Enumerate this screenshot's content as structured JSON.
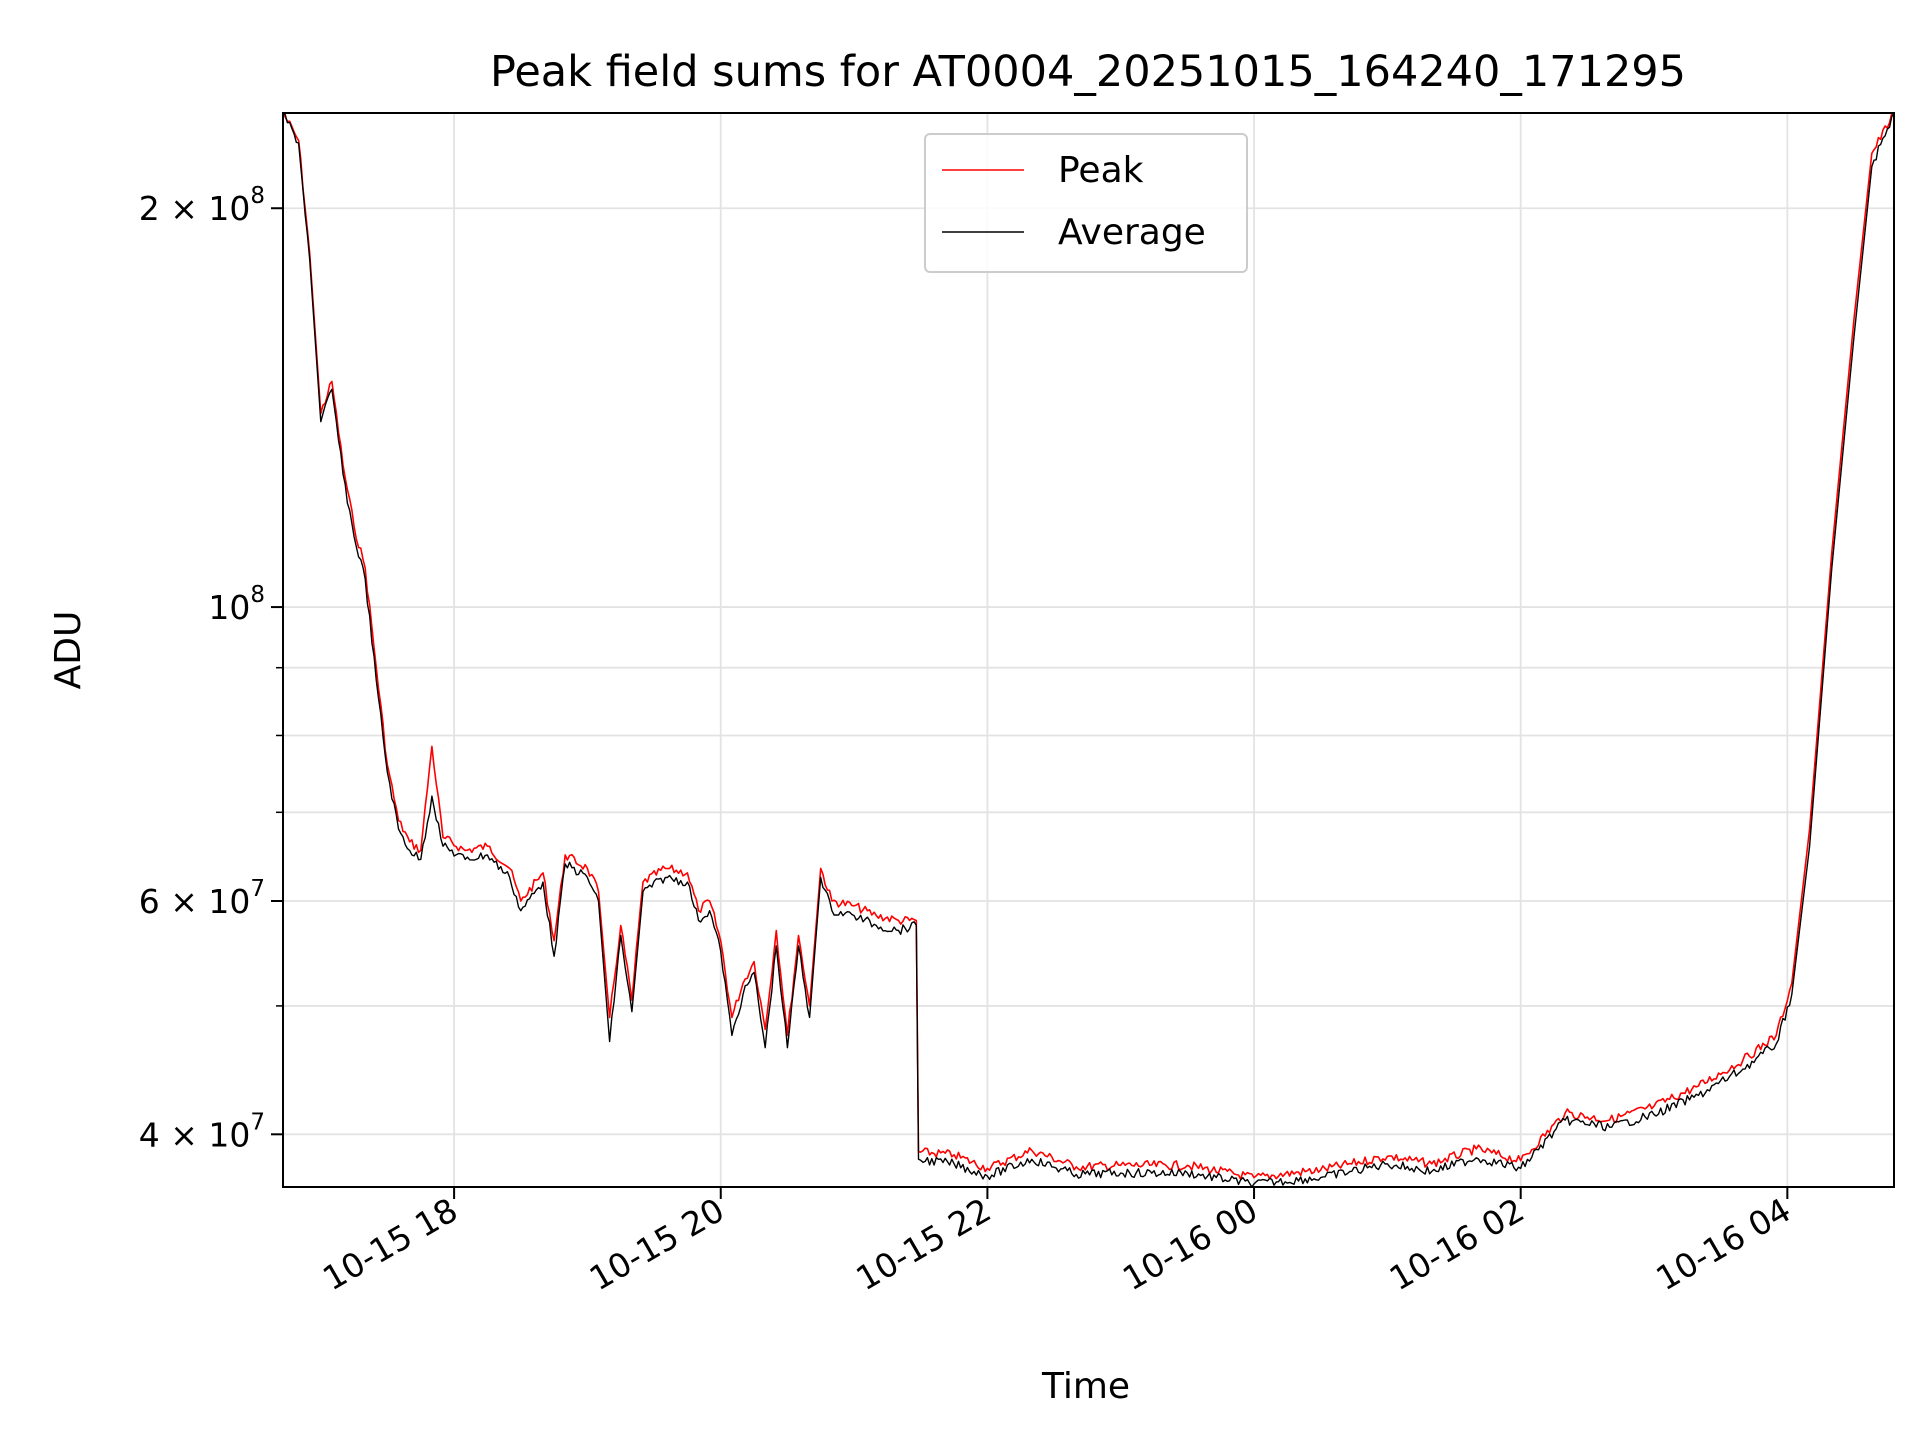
{
  "chart_data": {
    "type": "line",
    "title": "Peak field sums for AT0004_20251015_164240_171295",
    "xlabel": "Time",
    "ylabel": "ADU",
    "yscale": "log",
    "ylim": [
      36500000,
      236000000
    ],
    "xlim": [
      "2025-10-15 16:43",
      "2025-10-16 04:48"
    ],
    "grid": true,
    "legend_position": "top-center",
    "x_ticks": [
      {
        "value": "2025-10-15 18:00",
        "label": "10-15 18"
      },
      {
        "value": "2025-10-15 20:00",
        "label": "10-15 20"
      },
      {
        "value": "2025-10-15 22:00",
        "label": "10-15 22"
      },
      {
        "value": "2025-10-16 00:00",
        "label": "10-16 00"
      },
      {
        "value": "2025-10-16 02:00",
        "label": "10-16 02"
      },
      {
        "value": "2025-10-16 04:00",
        "label": "10-16 04"
      }
    ],
    "y_ticks": [
      {
        "value": 40000000,
        "base": "4 × 10",
        "exp": "7"
      },
      {
        "value": 60000000,
        "base": "6 × 10",
        "exp": "7"
      },
      {
        "value": 100000000,
        "base": "10",
        "exp": "8"
      },
      {
        "value": 200000000,
        "base": "2 × 10",
        "exp": "8"
      }
    ],
    "y_minor_ticks": [
      50000000,
      70000000,
      80000000,
      90000000
    ],
    "series": [
      {
        "name": "Peak",
        "color": "#ff0000",
        "points": [
          [
            "2025-10-15 16:43",
            236000000
          ],
          [
            "2025-10-15 16:50",
            225000000
          ],
          [
            "2025-10-15 16:55",
            185000000
          ],
          [
            "2025-10-15 17:00",
            140000000
          ],
          [
            "2025-10-15 17:05",
            148000000
          ],
          [
            "2025-10-15 17:10",
            128000000
          ],
          [
            "2025-10-15 17:15",
            115000000
          ],
          [
            "2025-10-15 17:20",
            107000000
          ],
          [
            "2025-10-15 17:25",
            90000000
          ],
          [
            "2025-10-15 17:30",
            76000000
          ],
          [
            "2025-10-15 17:35",
            69000000
          ],
          [
            "2025-10-15 17:40",
            66500000
          ],
          [
            "2025-10-15 17:45",
            65500000
          ],
          [
            "2025-10-15 17:50",
            78500000
          ],
          [
            "2025-10-15 17:55",
            67000000
          ],
          [
            "2025-10-15 18:05",
            65500000
          ],
          [
            "2025-10-15 18:15",
            66000000
          ],
          [
            "2025-10-15 18:25",
            63500000
          ],
          [
            "2025-10-15 18:30",
            60000000
          ],
          [
            "2025-10-15 18:40",
            63000000
          ],
          [
            "2025-10-15 18:45",
            56000000
          ],
          [
            "2025-10-15 18:50",
            65000000
          ],
          [
            "2025-10-15 19:00",
            63500000
          ],
          [
            "2025-10-15 19:05",
            61000000
          ],
          [
            "2025-10-15 19:10",
            49000000
          ],
          [
            "2025-10-15 19:15",
            57500000
          ],
          [
            "2025-10-15 19:20",
            50500000
          ],
          [
            "2025-10-15 19:25",
            62000000
          ],
          [
            "2025-10-15 19:35",
            63500000
          ],
          [
            "2025-10-15 19:45",
            63000000
          ],
          [
            "2025-10-15 19:50",
            59000000
          ],
          [
            "2025-10-15 19:55",
            60000000
          ],
          [
            "2025-10-15 20:00",
            56000000
          ],
          [
            "2025-10-15 20:05",
            49000000
          ],
          [
            "2025-10-15 20:10",
            52000000
          ],
          [
            "2025-10-15 20:15",
            54000000
          ],
          [
            "2025-10-15 20:20",
            48000000
          ],
          [
            "2025-10-15 20:25",
            57000000
          ],
          [
            "2025-10-15 20:30",
            47500000
          ],
          [
            "2025-10-15 20:35",
            56500000
          ],
          [
            "2025-10-15 20:40",
            50000000
          ],
          [
            "2025-10-15 20:45",
            63500000
          ],
          [
            "2025-10-15 20:50",
            60000000
          ],
          [
            "2025-10-15 21:00",
            59500000
          ],
          [
            "2025-10-15 21:10",
            58500000
          ],
          [
            "2025-10-15 21:20",
            58000000
          ],
          [
            "2025-10-15 21:28",
            58000000
          ],
          [
            "2025-10-15 21:29",
            38800000
          ],
          [
            "2025-10-15 21:45",
            38600000
          ],
          [
            "2025-10-15 22:00",
            37700000
          ],
          [
            "2025-10-15 22:20",
            38900000
          ],
          [
            "2025-10-15 22:40",
            37800000
          ],
          [
            "2025-10-15 23:00",
            37900000
          ],
          [
            "2025-10-15 23:30",
            37900000
          ],
          [
            "2025-10-16 00:00",
            37100000
          ],
          [
            "2025-10-16 00:30",
            37600000
          ],
          [
            "2025-10-16 01:00",
            38500000
          ],
          [
            "2025-10-16 01:20",
            38000000
          ],
          [
            "2025-10-16 01:40",
            39000000
          ],
          [
            "2025-10-16 02:00",
            38200000
          ],
          [
            "2025-10-16 02:20",
            41500000
          ],
          [
            "2025-10-16 02:40",
            41000000
          ],
          [
            "2025-10-16 03:00",
            42000000
          ],
          [
            "2025-10-16 03:20",
            43500000
          ],
          [
            "2025-10-16 03:40",
            45500000
          ],
          [
            "2025-10-16 03:55",
            47500000
          ],
          [
            "2025-10-16 04:02",
            52000000
          ],
          [
            "2025-10-16 04:10",
            68000000
          ],
          [
            "2025-10-16 04:20",
            110000000
          ],
          [
            "2025-10-16 04:30",
            165000000
          ],
          [
            "2025-10-16 04:38",
            220000000
          ],
          [
            "2025-10-16 04:48",
            236000000
          ]
        ]
      },
      {
        "name": "Average",
        "color": "#000000",
        "points": [
          [
            "2025-10-15 16:43",
            236000000
          ],
          [
            "2025-10-15 16:50",
            224000000
          ],
          [
            "2025-10-15 16:55",
            183000000
          ],
          [
            "2025-10-15 17:00",
            138000000
          ],
          [
            "2025-10-15 17:05",
            146000000
          ],
          [
            "2025-10-15 17:10",
            126000000
          ],
          [
            "2025-10-15 17:15",
            113000000
          ],
          [
            "2025-10-15 17:20",
            105000000
          ],
          [
            "2025-10-15 17:25",
            88000000
          ],
          [
            "2025-10-15 17:30",
            75000000
          ],
          [
            "2025-10-15 17:35",
            68000000
          ],
          [
            "2025-10-15 17:40",
            65500000
          ],
          [
            "2025-10-15 17:45",
            64500000
          ],
          [
            "2025-10-15 17:50",
            72000000
          ],
          [
            "2025-10-15 17:55",
            66000000
          ],
          [
            "2025-10-15 18:05",
            64500000
          ],
          [
            "2025-10-15 18:15",
            65000000
          ],
          [
            "2025-10-15 18:25",
            62500000
          ],
          [
            "2025-10-15 18:30",
            59000000
          ],
          [
            "2025-10-15 18:40",
            62000000
          ],
          [
            "2025-10-15 18:45",
            54500000
          ],
          [
            "2025-10-15 18:50",
            64000000
          ],
          [
            "2025-10-15 19:00",
            62500000
          ],
          [
            "2025-10-15 19:05",
            60000000
          ],
          [
            "2025-10-15 19:10",
            47000000
          ],
          [
            "2025-10-15 19:15",
            56500000
          ],
          [
            "2025-10-15 19:20",
            49500000
          ],
          [
            "2025-10-15 19:25",
            61000000
          ],
          [
            "2025-10-15 19:35",
            62500000
          ],
          [
            "2025-10-15 19:45",
            62000000
          ],
          [
            "2025-10-15 19:50",
            58000000
          ],
          [
            "2025-10-15 19:55",
            59000000
          ],
          [
            "2025-10-15 20:00",
            55000000
          ],
          [
            "2025-10-15 20:05",
            47500000
          ],
          [
            "2025-10-15 20:10",
            51000000
          ],
          [
            "2025-10-15 20:15",
            53000000
          ],
          [
            "2025-10-15 20:20",
            46500000
          ],
          [
            "2025-10-15 20:25",
            55500000
          ],
          [
            "2025-10-15 20:30",
            46500000
          ],
          [
            "2025-10-15 20:35",
            55500000
          ],
          [
            "2025-10-15 20:40",
            49000000
          ],
          [
            "2025-10-15 20:45",
            62500000
          ],
          [
            "2025-10-15 20:50",
            59000000
          ],
          [
            "2025-10-15 21:00",
            58500000
          ],
          [
            "2025-10-15 21:10",
            57500000
          ],
          [
            "2025-10-15 21:20",
            57000000
          ],
          [
            "2025-10-15 21:28",
            57500000
          ],
          [
            "2025-10-15 21:29",
            38300000
          ],
          [
            "2025-10-15 21:45",
            38000000
          ],
          [
            "2025-10-15 22:00",
            37200000
          ],
          [
            "2025-10-15 22:20",
            38300000
          ],
          [
            "2025-10-15 22:40",
            37300000
          ],
          [
            "2025-10-15 23:00",
            37400000
          ],
          [
            "2025-10-15 23:30",
            37400000
          ],
          [
            "2025-10-16 00:00",
            36700000
          ],
          [
            "2025-10-16 00:30",
            37100000
          ],
          [
            "2025-10-16 01:00",
            38000000
          ],
          [
            "2025-10-16 01:20",
            37500000
          ],
          [
            "2025-10-16 01:40",
            38400000
          ],
          [
            "2025-10-16 02:00",
            37700000
          ],
          [
            "2025-10-16 02:20",
            41000000
          ],
          [
            "2025-10-16 02:40",
            40500000
          ],
          [
            "2025-10-16 03:00",
            41400000
          ],
          [
            "2025-10-16 03:20",
            42800000
          ],
          [
            "2025-10-16 03:40",
            44800000
          ],
          [
            "2025-10-16 03:55",
            46800000
          ],
          [
            "2025-10-16 04:02",
            51000000
          ],
          [
            "2025-10-16 04:10",
            66000000
          ],
          [
            "2025-10-16 04:20",
            107000000
          ],
          [
            "2025-10-16 04:30",
            160000000
          ],
          [
            "2025-10-16 04:38",
            215000000
          ],
          [
            "2025-10-16 04:48",
            236000000
          ]
        ]
      }
    ]
  }
}
